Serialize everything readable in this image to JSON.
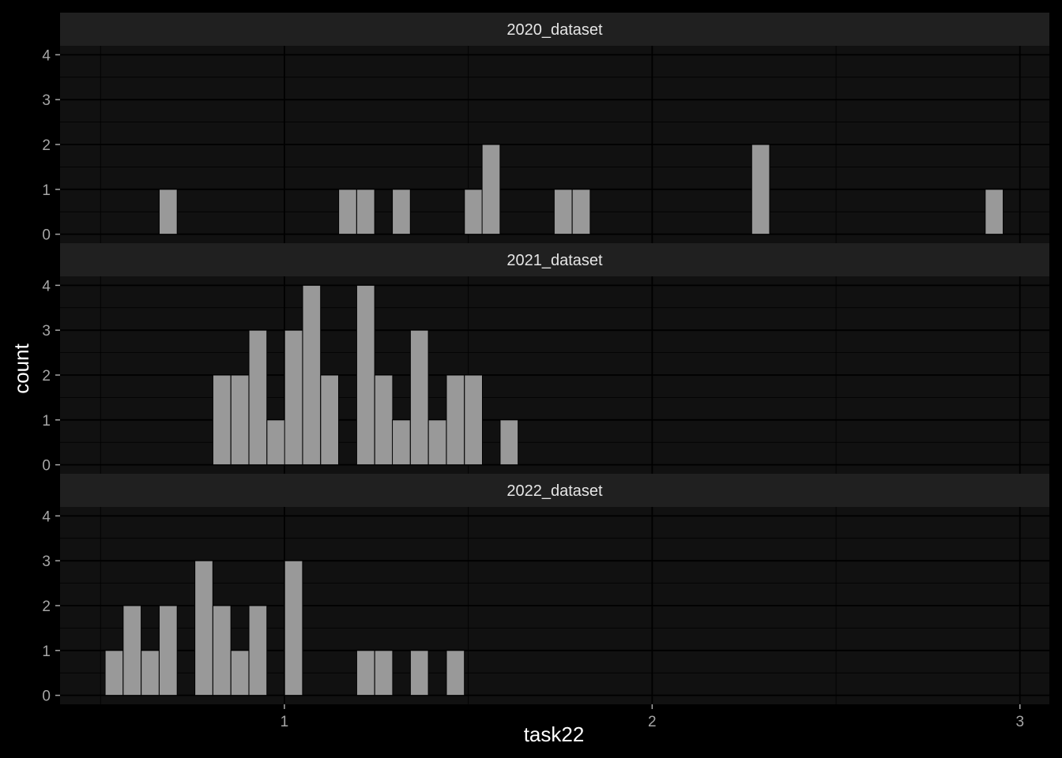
{
  "chart_data": {
    "type": "bar",
    "xlabel": "task22",
    "ylabel": "count",
    "xlim": [
      0.39,
      3.08
    ],
    "ylim": [
      -0.2,
      4.2
    ],
    "x_ticks": [
      1,
      2,
      3
    ],
    "y_ticks": [
      0,
      1,
      2,
      3,
      4
    ],
    "bin_width": 0.0488,
    "grid": true,
    "bar_color": "#999999",
    "panel_background": "#111111",
    "strip_background": "#202020",
    "facets": [
      {
        "name": "2020_dataset",
        "bins": [
          0.684,
          1.172,
          1.221,
          1.318,
          1.514,
          1.562,
          1.758,
          1.807,
          2.295,
          2.93
        ],
        "counts": [
          1,
          1,
          1,
          1,
          1,
          2,
          1,
          1,
          2,
          1
        ]
      },
      {
        "name": "2021_dataset",
        "bins": [
          0.83,
          0.879,
          0.928,
          0.977,
          1.025,
          1.074,
          1.123,
          1.221,
          1.27,
          1.318,
          1.367,
          1.416,
          1.465,
          1.514,
          1.611
        ],
        "counts": [
          2,
          2,
          3,
          1,
          3,
          4,
          2,
          4,
          2,
          1,
          3,
          1,
          2,
          2,
          1
        ]
      },
      {
        "name": "2022_dataset",
        "bins": [
          0.537,
          0.586,
          0.635,
          0.684,
          0.781,
          0.83,
          0.879,
          0.928,
          1.025,
          1.221,
          1.27,
          1.367,
          1.465
        ],
        "counts": [
          1,
          2,
          1,
          2,
          3,
          2,
          1,
          2,
          3,
          1,
          1,
          1,
          1
        ]
      }
    ]
  }
}
